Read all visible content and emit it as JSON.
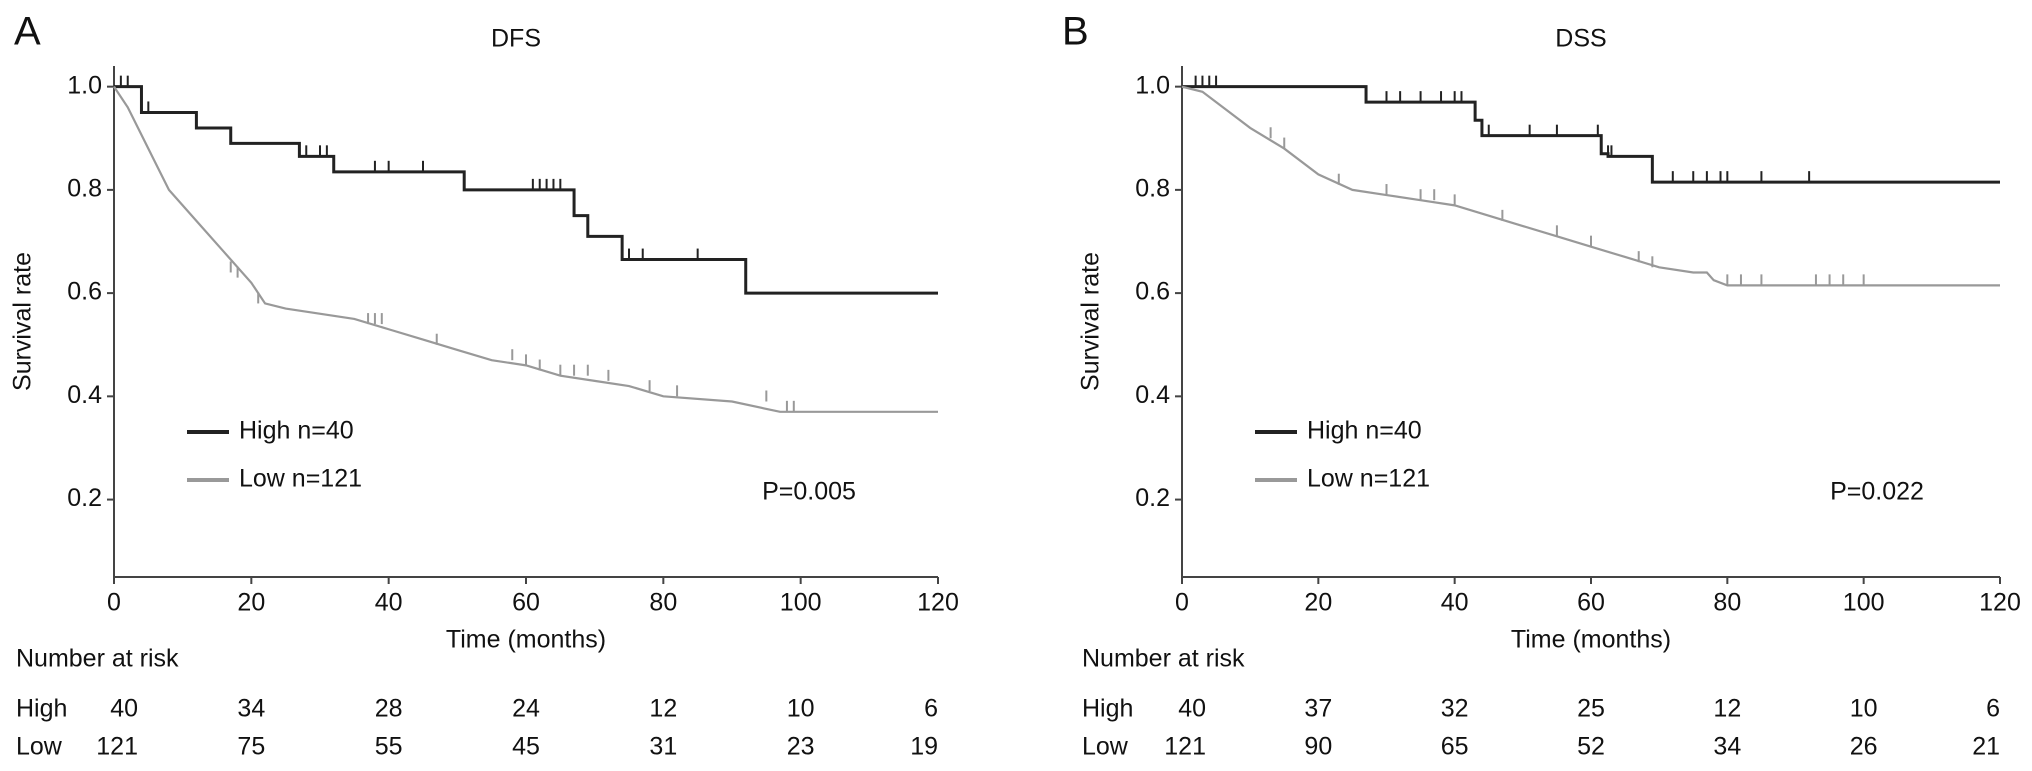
{
  "chart_data": [
    {
      "type": "line",
      "panel_label": "A",
      "title": "DFS",
      "x_label": "Time (months)",
      "y_label": "Survival rate",
      "xlim": [
        0,
        120
      ],
      "ylim": [
        0.05,
        1.04
      ],
      "xticks": [
        0,
        20,
        40,
        60,
        80,
        100,
        120
      ],
      "yticks": [
        0.2,
        0.4,
        0.6,
        0.8,
        {
          "value": 1,
          "label": "1.0"
        }
      ],
      "annotation": "P=0.005",
      "series": [
        {
          "name": "High n=40",
          "color": "#222222",
          "x": [
            0,
            4,
            4,
            12,
            12,
            17,
            17,
            27,
            27,
            32,
            32,
            51,
            51,
            67,
            67,
            69,
            69,
            74,
            74,
            92,
            92,
            120
          ],
          "values": [
            1,
            1,
            0.95,
            0.95,
            0.92,
            0.92,
            0.89,
            0.89,
            0.865,
            0.865,
            0.835,
            0.835,
            0.8,
            0.8,
            0.75,
            0.75,
            0.71,
            0.71,
            0.665,
            0.665,
            0.6,
            0.6
          ],
          "censor_x": [
            1,
            2,
            5,
            28,
            30,
            31,
            38,
            40,
            45,
            61,
            62,
            63,
            64,
            65,
            75,
            77,
            85
          ],
          "censor_values": [
            1,
            1,
            0.95,
            0.865,
            0.865,
            0.865,
            0.835,
            0.835,
            0.835,
            0.8,
            0.8,
            0.8,
            0.8,
            0.8,
            0.665,
            0.665,
            0.665
          ]
        },
        {
          "name": "Low n=121",
          "color": "#999999",
          "x": [
            0,
            2,
            5,
            8,
            12,
            16,
            20,
            22,
            25,
            35,
            40,
            45,
            50,
            55,
            60,
            65,
            70,
            75,
            80,
            90,
            97,
            120
          ],
          "values": [
            1,
            0.96,
            0.88,
            0.8,
            0.74,
            0.68,
            0.62,
            0.58,
            0.57,
            0.55,
            0.53,
            0.51,
            0.49,
            0.47,
            0.46,
            0.44,
            0.43,
            0.42,
            0.4,
            0.39,
            0.37,
            0.37
          ],
          "censor_x": [
            17,
            18,
            21,
            37,
            38,
            39,
            47,
            58,
            60,
            62,
            65,
            67,
            69,
            72,
            78,
            82,
            95,
            98,
            99
          ],
          "censor_values": [
            0.64,
            0.63,
            0.58,
            0.54,
            0.54,
            0.54,
            0.5,
            0.47,
            0.46,
            0.45,
            0.44,
            0.44,
            0.44,
            0.43,
            0.41,
            0.4,
            0.39,
            0.37,
            0.37
          ]
        }
      ],
      "risk_table": {
        "title": "Number at risk",
        "rows": [
          {
            "name": "High",
            "values": [
              40,
              34,
              28,
              24,
              12,
              10,
              6
            ]
          },
          {
            "name": "Low",
            "values": [
              121,
              75,
              55,
              45,
              31,
              23,
              19
            ]
          }
        ]
      }
    },
    {
      "type": "line",
      "panel_label": "B",
      "title": "DSS",
      "x_label": "Time (months)",
      "y_label": "Survival rate",
      "xlim": [
        0,
        120
      ],
      "ylim": [
        0.05,
        1.04
      ],
      "xticks": [
        0,
        20,
        40,
        60,
        80,
        100,
        120
      ],
      "yticks": [
        0.2,
        0.4,
        0.6,
        0.8,
        {
          "value": 1,
          "label": "1.0"
        }
      ],
      "annotation": "P=0.022",
      "series": [
        {
          "name": "High n=40",
          "color": "#222222",
          "x": [
            0,
            27,
            27,
            43,
            43,
            44,
            44,
            61.5,
            61.5,
            62.5,
            62.5,
            69,
            69,
            120
          ],
          "values": [
            1,
            1,
            0.97,
            0.97,
            0.935,
            0.935,
            0.905,
            0.905,
            0.87,
            0.87,
            0.865,
            0.865,
            0.815,
            0.815
          ],
          "censor_x": [
            2,
            3,
            4,
            5,
            30,
            32,
            35,
            38,
            40,
            41,
            45,
            51,
            55,
            61,
            62.5,
            63,
            72,
            75,
            77,
            79,
            80,
            85,
            92
          ],
          "censor_values": [
            1,
            1,
            1,
            1,
            0.97,
            0.97,
            0.97,
            0.97,
            0.97,
            0.97,
            0.905,
            0.905,
            0.905,
            0.905,
            0.865,
            0.865,
            0.815,
            0.815,
            0.815,
            0.815,
            0.815,
            0.815,
            0.815
          ]
        },
        {
          "name": "Low n=121",
          "color": "#999999",
          "x": [
            0,
            3,
            6,
            10,
            15,
            20,
            25,
            30,
            35,
            40,
            45,
            50,
            55,
            60,
            65,
            70,
            75,
            77,
            78,
            80,
            120
          ],
          "values": [
            1,
            0.99,
            0.96,
            0.92,
            0.88,
            0.83,
            0.8,
            0.79,
            0.78,
            0.77,
            0.75,
            0.73,
            0.71,
            0.69,
            0.67,
            0.65,
            0.64,
            0.64,
            0.625,
            0.615,
            0.615
          ],
          "censor_x": [
            13,
            15,
            23,
            30,
            35,
            37,
            40,
            47,
            55,
            60,
            67,
            69,
            80,
            82,
            85,
            93,
            95,
            97,
            100
          ],
          "censor_values": [
            0.9,
            0.88,
            0.81,
            0.79,
            0.78,
            0.78,
            0.77,
            0.74,
            0.71,
            0.69,
            0.66,
            0.65,
            0.615,
            0.615,
            0.615,
            0.615,
            0.615,
            0.615,
            0.615
          ]
        }
      ],
      "risk_table": {
        "title": "Number at risk",
        "rows": [
          {
            "name": "High",
            "values": [
              40,
              37,
              32,
              25,
              12,
              10,
              6
            ]
          },
          {
            "name": "Low",
            "values": [
              121,
              90,
              65,
              52,
              34,
              26,
              21
            ]
          }
        ]
      }
    }
  ]
}
